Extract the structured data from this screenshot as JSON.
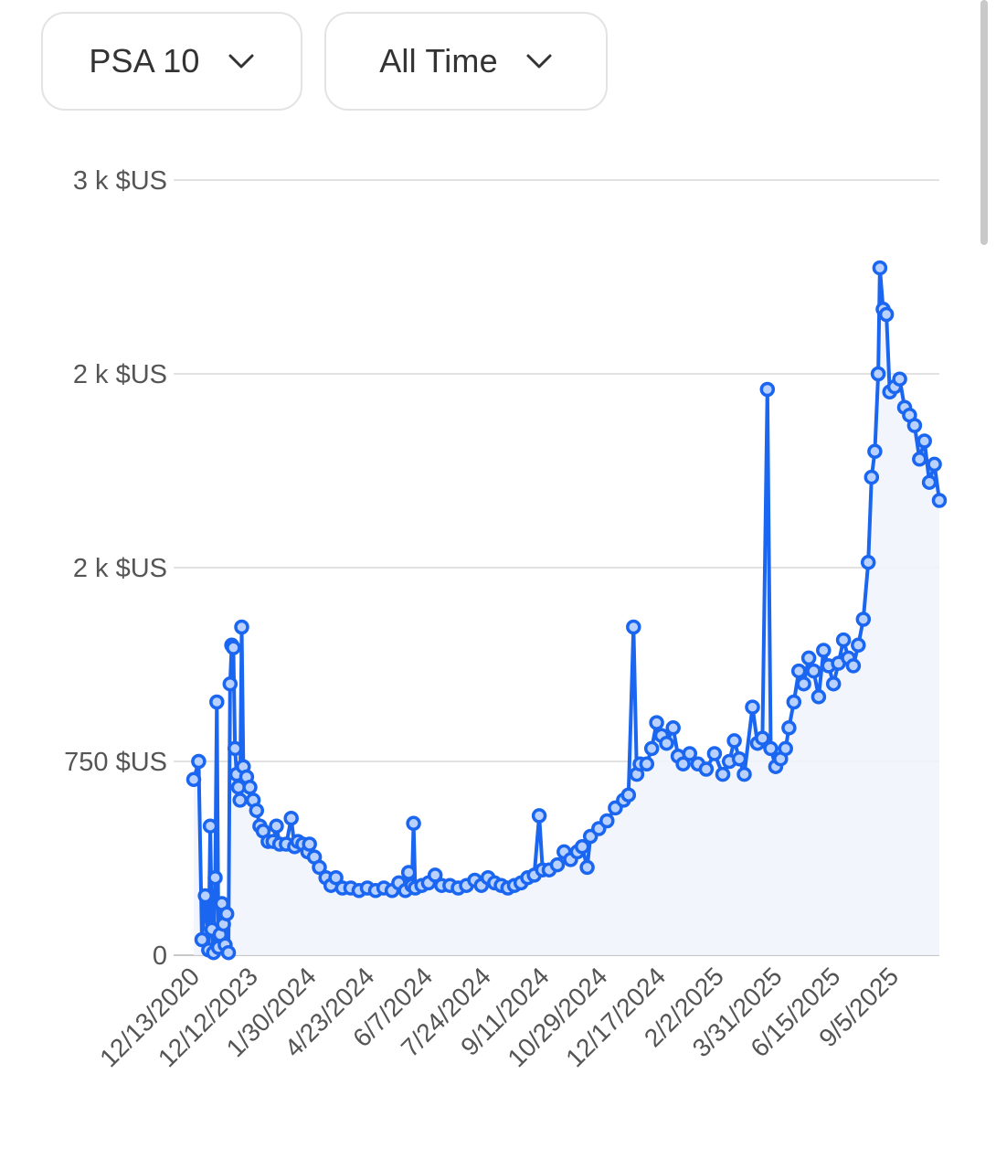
{
  "controls": {
    "grade": {
      "label": "PSA 10",
      "icon": "chevron-down-icon"
    },
    "range": {
      "label": "All Time",
      "icon": "chevron-down-icon"
    }
  },
  "colors": {
    "series": "#1a66f0",
    "marker_fill": "#b9d1ff",
    "grid": "#e2e2e2",
    "axis": "#c8c8c8",
    "area": "#f1f4fb"
  },
  "chart_data": {
    "type": "line",
    "currency_unit": "$US",
    "y_ticks": [
      {
        "value": 0,
        "label": "0"
      },
      {
        "value": 750,
        "label": "750 $US"
      },
      {
        "value": 1500,
        "label": "2 k $US"
      },
      {
        "value": 2250,
        "label": "2 k $US"
      },
      {
        "value": 3000,
        "label": "3 k $US"
      }
    ],
    "ylim": [
      0,
      3000
    ],
    "x_tick_labels": [
      "12/13/2020",
      "12/12/2023",
      "1/30/2024",
      "4/23/2024",
      "6/7/2024",
      "7/24/2024",
      "9/11/2024",
      "10/29/2024",
      "12/17/2024",
      "2/2/2025",
      "3/31/2025",
      "6/15/2025",
      "9/5/2025"
    ],
    "grid": true,
    "legend": "none",
    "series": [
      {
        "values": [
          [
            0,
            680
          ],
          [
            0.3,
            750
          ],
          [
            0.5,
            60
          ],
          [
            0.7,
            230
          ],
          [
            0.9,
            20
          ],
          [
            1.0,
            500
          ],
          [
            1.1,
            100
          ],
          [
            1.2,
            10
          ],
          [
            1.3,
            300
          ],
          [
            1.4,
            980
          ],
          [
            1.5,
            30
          ],
          [
            1.6,
            80
          ],
          [
            1.7,
            200
          ],
          [
            1.8,
            120
          ],
          [
            1.9,
            40
          ],
          [
            2.0,
            160
          ],
          [
            2.1,
            10
          ],
          [
            2.2,
            1050
          ],
          [
            2.3,
            1200
          ],
          [
            2.4,
            1190
          ],
          [
            2.5,
            800
          ],
          [
            2.6,
            700
          ],
          [
            2.7,
            650
          ],
          [
            2.8,
            600
          ],
          [
            2.9,
            1270
          ],
          [
            3.0,
            730
          ],
          [
            3.2,
            690
          ],
          [
            3.4,
            650
          ],
          [
            3.6,
            600
          ],
          [
            3.8,
            560
          ],
          [
            4.0,
            500
          ],
          [
            4.2,
            480
          ],
          [
            4.5,
            440
          ],
          [
            4.8,
            440
          ],
          [
            5.0,
            500
          ],
          [
            5.2,
            430
          ],
          [
            5.6,
            430
          ],
          [
            5.9,
            530
          ],
          [
            6.1,
            420
          ],
          [
            6.3,
            440
          ],
          [
            6.6,
            430
          ],
          [
            6.9,
            400
          ],
          [
            7.0,
            430
          ],
          [
            7.3,
            380
          ],
          [
            7.6,
            340
          ],
          [
            8.0,
            300
          ],
          [
            8.3,
            270
          ],
          [
            8.6,
            300
          ],
          [
            9.0,
            260
          ],
          [
            9.5,
            260
          ],
          [
            10.0,
            250
          ],
          [
            10.5,
            260
          ],
          [
            11.0,
            250
          ],
          [
            11.5,
            260
          ],
          [
            12.0,
            250
          ],
          [
            12.4,
            280
          ],
          [
            12.8,
            250
          ],
          [
            13.0,
            320
          ],
          [
            13.2,
            270
          ],
          [
            13.3,
            510
          ],
          [
            13.4,
            260
          ],
          [
            13.8,
            270
          ],
          [
            14.2,
            280
          ],
          [
            14.6,
            310
          ],
          [
            15.0,
            270
          ],
          [
            15.5,
            270
          ],
          [
            16.0,
            260
          ],
          [
            16.5,
            270
          ],
          [
            17.0,
            290
          ],
          [
            17.4,
            270
          ],
          [
            17.8,
            300
          ],
          [
            18.2,
            280
          ],
          [
            18.6,
            270
          ],
          [
            19.0,
            260
          ],
          [
            19.4,
            270
          ],
          [
            19.8,
            280
          ],
          [
            20.2,
            300
          ],
          [
            20.6,
            310
          ],
          [
            20.9,
            540
          ],
          [
            21.1,
            330
          ],
          [
            21.5,
            330
          ],
          [
            22.0,
            350
          ],
          [
            22.4,
            400
          ],
          [
            22.8,
            370
          ],
          [
            23.2,
            400
          ],
          [
            23.5,
            420
          ],
          [
            23.8,
            340
          ],
          [
            24.0,
            460
          ],
          [
            24.5,
            490
          ],
          [
            25.0,
            520
          ],
          [
            25.5,
            570
          ],
          [
            26.0,
            600
          ],
          [
            26.3,
            620
          ],
          [
            26.6,
            1270
          ],
          [
            26.8,
            700
          ],
          [
            27.0,
            740
          ],
          [
            27.4,
            740
          ],
          [
            27.7,
            800
          ],
          [
            28.0,
            900
          ],
          [
            28.3,
            850
          ],
          [
            28.6,
            820
          ],
          [
            29.0,
            880
          ],
          [
            29.3,
            770
          ],
          [
            29.6,
            740
          ],
          [
            30.0,
            780
          ],
          [
            30.5,
            740
          ],
          [
            31.0,
            720
          ],
          [
            31.5,
            780
          ],
          [
            32.0,
            700
          ],
          [
            32.4,
            750
          ],
          [
            32.7,
            830
          ],
          [
            33.0,
            760
          ],
          [
            33.3,
            700
          ],
          [
            33.8,
            960
          ],
          [
            34.1,
            820
          ],
          [
            34.4,
            840
          ],
          [
            34.7,
            2190
          ],
          [
            34.9,
            800
          ],
          [
            35.2,
            730
          ],
          [
            35.5,
            760
          ],
          [
            35.8,
            800
          ],
          [
            36.0,
            880
          ],
          [
            36.3,
            980
          ],
          [
            36.6,
            1100
          ],
          [
            36.9,
            1050
          ],
          [
            37.2,
            1150
          ],
          [
            37.5,
            1100
          ],
          [
            37.8,
            1000
          ],
          [
            38.1,
            1180
          ],
          [
            38.4,
            1120
          ],
          [
            38.7,
            1050
          ],
          [
            39.0,
            1130
          ],
          [
            39.3,
            1220
          ],
          [
            39.6,
            1150
          ],
          [
            39.9,
            1120
          ],
          [
            40.2,
            1200
          ],
          [
            40.5,
            1300
          ],
          [
            40.8,
            1520
          ],
          [
            41.0,
            1850
          ],
          [
            41.2,
            1950
          ],
          [
            41.4,
            2250
          ],
          [
            41.5,
            2660
          ],
          [
            41.7,
            2500
          ],
          [
            41.9,
            2480
          ],
          [
            42.1,
            2180
          ],
          [
            42.4,
            2200
          ],
          [
            42.7,
            2230
          ],
          [
            43.0,
            2120
          ],
          [
            43.3,
            2090
          ],
          [
            43.6,
            2050
          ],
          [
            43.9,
            1920
          ],
          [
            44.2,
            1990
          ],
          [
            44.5,
            1830
          ],
          [
            44.8,
            1900
          ],
          [
            45.1,
            1760
          ]
        ]
      }
    ]
  }
}
